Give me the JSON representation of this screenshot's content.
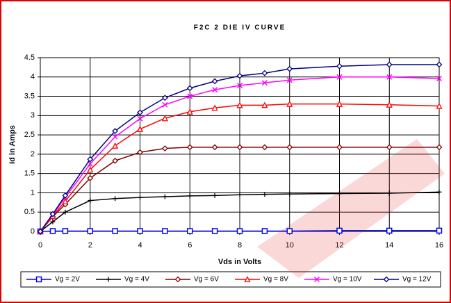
{
  "chart_data": {
    "type": "line",
    "title": "F2C 2 DIE IV CURVE",
    "xlabel": "Vds in Volts",
    "ylabel": "Id in Amps",
    "x": [
      0,
      0.5,
      1,
      2,
      3,
      4,
      5,
      6,
      7,
      8,
      9,
      10,
      12,
      14,
      16
    ],
    "series": [
      {
        "name": "Vg = 2V",
        "color": "#0000ff",
        "marker": "square",
        "values": [
          0,
          0.01,
          0.01,
          0.01,
          0.01,
          0.01,
          0.01,
          0.01,
          0.01,
          0.01,
          0.01,
          0.01,
          0.02,
          0.02,
          0.02
        ]
      },
      {
        "name": "Vg = 4V",
        "color": "#000000",
        "marker": "plus",
        "values": [
          0,
          0.25,
          0.5,
          0.8,
          0.85,
          0.88,
          0.9,
          0.92,
          0.93,
          0.95,
          0.96,
          0.97,
          0.98,
          0.99,
          1.02
        ]
      },
      {
        "name": "Vg = 6V",
        "color": "#800000",
        "marker": "diamond",
        "values": [
          0,
          0.38,
          0.7,
          1.38,
          1.83,
          2.05,
          2.15,
          2.18,
          2.18,
          2.18,
          2.18,
          2.18,
          2.18,
          2.18,
          2.18
        ]
      },
      {
        "name": "Vg = 8V",
        "color": "#ff0000",
        "marker": "triangle",
        "values": [
          0,
          0.4,
          0.78,
          1.6,
          2.22,
          2.65,
          2.93,
          3.1,
          3.2,
          3.27,
          3.27,
          3.3,
          3.3,
          3.28,
          3.25
        ]
      },
      {
        "name": "Vg = 10V",
        "color": "#ff00ff",
        "marker": "x",
        "values": [
          0,
          0.43,
          0.88,
          1.75,
          2.45,
          2.92,
          3.28,
          3.5,
          3.67,
          3.78,
          3.85,
          3.92,
          4.0,
          4.0,
          3.96
        ]
      },
      {
        "name": "Vg = 12V",
        "color": "#000080",
        "marker": "diamond",
        "values": [
          0,
          0.45,
          0.93,
          1.87,
          2.6,
          3.08,
          3.46,
          3.71,
          3.89,
          4.03,
          4.1,
          4.21,
          4.28,
          4.32,
          4.32
        ]
      }
    ],
    "xlim": [
      0,
      16
    ],
    "xticks": [
      0,
      2,
      4,
      6,
      8,
      10,
      12,
      14,
      16
    ],
    "ylim": [
      0,
      4.5
    ],
    "yticks": [
      0,
      0.5,
      1,
      1.5,
      2,
      2.5,
      3,
      3.5,
      4,
      4.5
    ],
    "grid": true,
    "legend": "bottom"
  }
}
